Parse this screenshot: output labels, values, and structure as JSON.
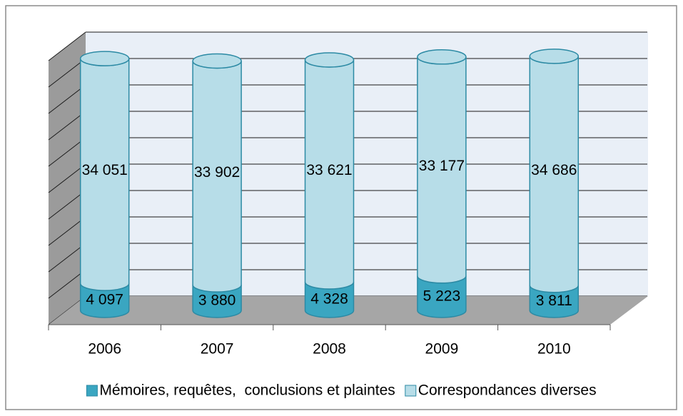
{
  "chart_data": {
    "type": "bar3d_stacked_cylinder",
    "categories": [
      "2006",
      "2007",
      "2008",
      "2009",
      "2010"
    ],
    "series": [
      {
        "name": "Mémoires, requêtes,  conclusions et plaintes",
        "color": "#3aa6c1",
        "values": [
          4097,
          3880,
          4328,
          5223,
          3811
        ],
        "value_labels": [
          "4 097",
          "3 880",
          "4 328",
          "5 223",
          "3 811"
        ]
      },
      {
        "name": "Correspondances diverses",
        "color": "#b7dde8",
        "values": [
          34051,
          33902,
          33621,
          33177,
          34686
        ],
        "value_labels": [
          "34 051",
          "33 902",
          "33 621",
          "33 177",
          "34 686"
        ]
      }
    ],
    "ylim": [
      0,
      40000
    ],
    "yticks": [
      0,
      4000,
      8000,
      12000,
      16000,
      20000,
      24000,
      28000,
      32000,
      36000,
      40000
    ],
    "grid": true,
    "legend": "bottom"
  }
}
